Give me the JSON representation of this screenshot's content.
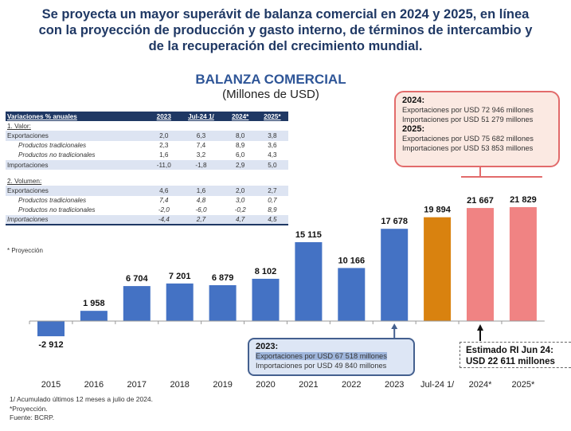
{
  "headline": [
    "Se proyecta un mayor superávit de balanza comercial en 2024 y 2025, en línea",
    "con la proyección de producción y gasto interno, de términos de intercambio y",
    "de la recuperación del crecimiento mundial."
  ],
  "table": {
    "header": [
      "Variaciones % anuales",
      "2023",
      "Jul-24 1/",
      "2024*",
      "2025*"
    ],
    "sections": [
      {
        "title": "1. Valor:",
        "rows": [
          {
            "label": "Exportaciones",
            "values": [
              "2,0",
              "6,3",
              "8,0",
              "3,8"
            ]
          },
          {
            "label": "Productos tradicionales",
            "values": [
              "2,3",
              "7,4",
              "8,9",
              "3,6"
            ]
          },
          {
            "label": "Productos no tradicionales",
            "values": [
              "1,6",
              "3,2",
              "6,0",
              "4,3"
            ]
          },
          {
            "label": "Importaciones",
            "values": [
              "-11,0",
              "-1,8",
              "2,9",
              "5,0"
            ]
          }
        ]
      },
      {
        "title": "2. Volumen:",
        "rows": [
          {
            "label": "Exportaciones",
            "values": [
              "4,6",
              "1,6",
              "2,0",
              "2,7"
            ]
          },
          {
            "label": "Productos tradicionales",
            "values": [
              "7,4",
              "4,8",
              "3,0",
              "0,7"
            ]
          },
          {
            "label": "Productos no tradicionales",
            "values": [
              "-2,0",
              "-6,0",
              "-0,2",
              "8,9"
            ]
          },
          {
            "label": "Importaciones",
            "values": [
              "-4,4",
              "2,7",
              "4,7",
              "4,5"
            ]
          }
        ]
      }
    ],
    "note": "* Proyección"
  },
  "box_2024_2025": {
    "y1": "2024:",
    "l1": "Exportaciones por USD 72 946 millones",
    "l2": "Importaciones por USD 51 279 millones",
    "y2": "2025:",
    "l3": "Exportaciones por USD 75 682 millones",
    "l4": "Importaciones por USD 53 853 millones"
  },
  "box_2023": {
    "y": "2023:",
    "l1": "Exportaciones por USD 67 518 millones",
    "l2": "Importaciones por USD 49 840  millones"
  },
  "box_ri": {
    "l1": "Estimado RI Jun 24:",
    "l2": "USD 22 611 millones"
  },
  "footnotes": [
    "1/ Acumulado últimos 12 meses a julio de 2024.",
    "*Proyección.",
    "Fuente: BCRP."
  ],
  "colors": {
    "actual": "#4472c4",
    "partial": "#d9820f",
    "projection": "#f08383"
  },
  "chart_data": {
    "type": "bar",
    "title": "BALANZA COMERCIAL",
    "subtitle": "(Millones de USD)",
    "categories": [
      "2015",
      "2016",
      "2017",
      "2018",
      "2019",
      "2020",
      "2021",
      "2022",
      "2023",
      "Jul-24 1/",
      "2024*",
      "2025*"
    ],
    "values": [
      -2912,
      1958,
      6704,
      7201,
      6879,
      8102,
      15115,
      10166,
      17678,
      19894,
      21667,
      21829
    ],
    "labels": [
      "-2 912",
      "1 958",
      "6 704",
      "7 201",
      "6 879",
      "8 102",
      "15 115",
      "10 166",
      "17 678",
      "19 894",
      "21 667",
      "21 829"
    ],
    "kinds": [
      "actual",
      "actual",
      "actual",
      "actual",
      "actual",
      "actual",
      "actual",
      "actual",
      "actual",
      "partial",
      "projection",
      "projection"
    ],
    "xlabel": "",
    "ylabel": "Millones de USD",
    "grid": false
  }
}
